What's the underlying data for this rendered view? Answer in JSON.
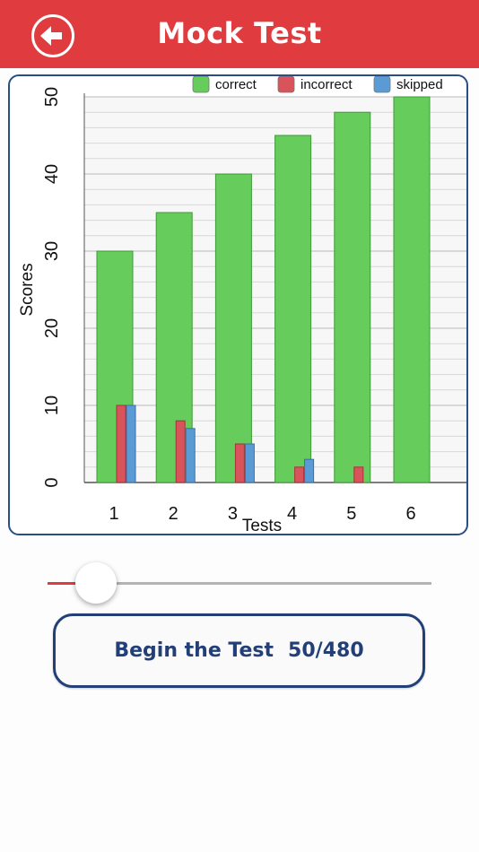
{
  "header": {
    "title": "Mock Test",
    "back_icon": "arrow-left-icon",
    "color": "#e03b3f"
  },
  "chart_data": {
    "type": "bar",
    "categories": [
      "1",
      "2",
      "3",
      "4",
      "5",
      "6"
    ],
    "series": [
      {
        "name": "correct",
        "color": "#66cc5c",
        "values": [
          30,
          35,
          40,
          45,
          48,
          50
        ]
      },
      {
        "name": "incorrect",
        "color": "#d9535a",
        "values": [
          10,
          8,
          5,
          2,
          2,
          0
        ]
      },
      {
        "name": "skipped",
        "color": "#5b9bd5",
        "values": [
          10,
          7,
          5,
          3,
          0,
          0
        ]
      }
    ],
    "xlabel": "Tests",
    "ylabel": "Scores",
    "ylim": [
      0,
      50
    ],
    "yticks": [
      0,
      10,
      20,
      30,
      40,
      50
    ],
    "grid": true,
    "legend": "top-right"
  },
  "slider": {
    "value_fraction": 0.1
  },
  "begin_button": {
    "label": "Begin the Test",
    "count": "50/480"
  }
}
